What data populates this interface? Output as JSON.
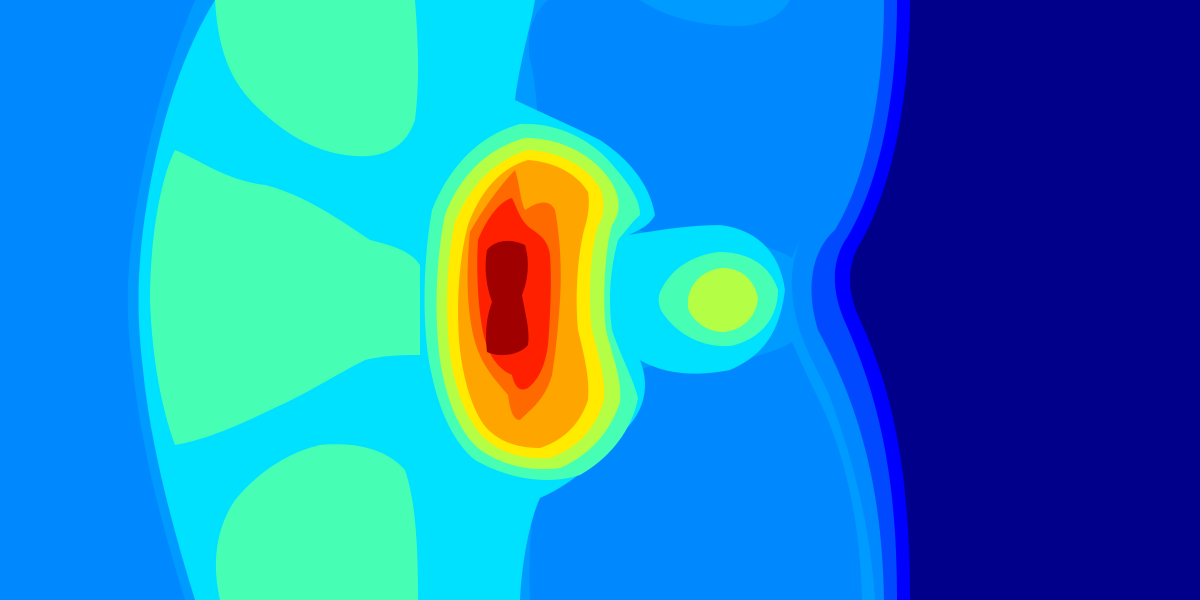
{
  "chart_data": {
    "type": "heatmap",
    "subtype": "filled-contour",
    "title": "",
    "xlabel": "",
    "ylabel": "",
    "colormap": "jet",
    "levels": [
      {
        "index": 0,
        "color": "#00008b"
      },
      {
        "index": 1,
        "color": "#0000ff"
      },
      {
        "index": 2,
        "color": "#0049ff"
      },
      {
        "index": 3,
        "color": "#0088ff"
      },
      {
        "index": 4,
        "color": "#009bff"
      },
      {
        "index": 5,
        "color": "#00e0ff"
      },
      {
        "index": 6,
        "color": "#46ffb4"
      },
      {
        "index": 7,
        "color": "#b4ff46"
      },
      {
        "index": 8,
        "color": "#ffea00"
      },
      {
        "index": 9,
        "color": "#ffa500"
      },
      {
        "index": 10,
        "color": "#ff6a00"
      },
      {
        "index": 11,
        "color": "#ff2000"
      },
      {
        "index": 12,
        "color": "#a00000"
      }
    ]
  }
}
